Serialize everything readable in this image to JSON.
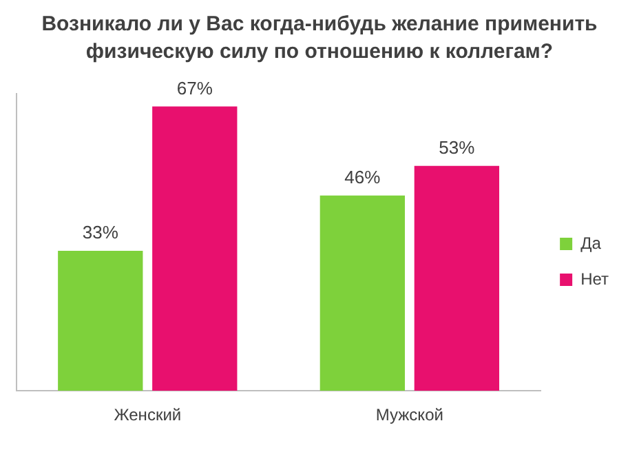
{
  "chart_data": {
    "type": "bar",
    "title": "Возникало ли у Вас когда-нибудь желание применить физическую силу по отношению к коллегам?",
    "categories": [
      "Женский",
      "Мужской"
    ],
    "series": [
      {
        "name": "Да",
        "color": "#7ed13b",
        "values": [
          33,
          46
        ],
        "value_labels": [
          "33%",
          "46%"
        ]
      },
      {
        "name": "Нет",
        "color": "#e8106e",
        "values": [
          67,
          53
        ],
        "value_labels": [
          "67%",
          "53%"
        ]
      }
    ],
    "legend": "right",
    "grid": false
  }
}
